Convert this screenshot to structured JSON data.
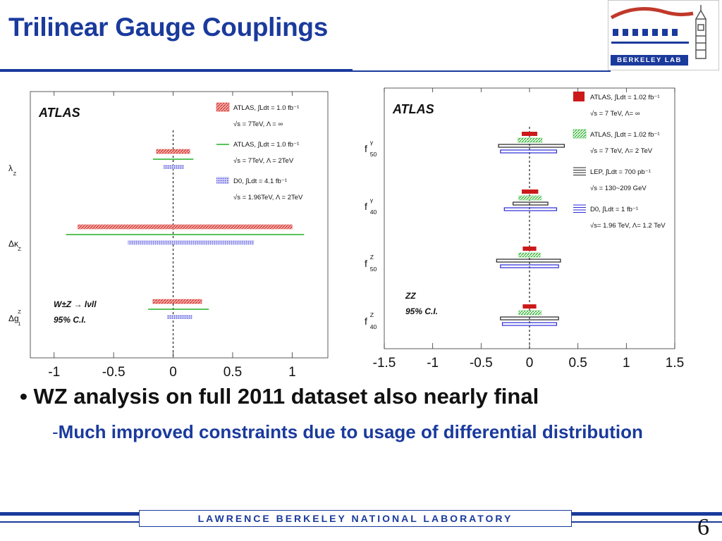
{
  "slide": {
    "title": "Trilinear Gauge Couplings",
    "logo_text": "BERKELEY LAB",
    "bullet1": "WZ analysis on full 2011 dataset also nearly final",
    "bullet2": "Much improved constraints due to usage of differential distribution",
    "footer": "LAWRENCE BERKELEY NATIONAL LABORATORY",
    "page_number": "6"
  },
  "chart_data": [
    {
      "type": "interval",
      "experiment": "ATLAS",
      "annotation": [
        "W±Z → lνll",
        "95% C.I."
      ],
      "xlim": [
        -1.2,
        1.3
      ],
      "xticks": [
        "-1",
        "-0.5",
        "0",
        "0.5",
        "1"
      ],
      "xtick_values": [
        -1,
        -0.5,
        0,
        0.5,
        1
      ],
      "parameters": [
        "λZ",
        "ΔκZ",
        "Δg1Z"
      ],
      "param_labels": [
        {
          "main": "λ",
          "sub": "Z",
          "sup": ""
        },
        {
          "main": "Δκ",
          "sub": "Z",
          "sup": ""
        },
        {
          "main": "Δg",
          "sub": "1",
          "sup": "Z"
        }
      ],
      "legend": [
        {
          "line1": "ATLAS, ∫Ldt = 1.0 fb⁻¹",
          "line2": "√s = 7TeV, Λ = ∞",
          "style": "hatch",
          "color": "#e0302b"
        },
        {
          "line1": "ATLAS, ∫Ldt = 1.0 fb⁻¹",
          "line2": "√s = 7TeV, Λ = 2TeV",
          "style": "line",
          "color": "#22b022"
        },
        {
          "line1": "D0, ∫Ldt = 4.1 fb⁻¹",
          "line2": "√s = 1.96TeV, Λ = 2TeV",
          "style": "dots",
          "color": "#3a3ae0"
        }
      ],
      "series": [
        {
          "name": "ATLAS, √s = 7TeV, Λ = ∞",
          "style": "hatch",
          "color": "#e0302b",
          "intervals": [
            [
              -0.14,
              0.14
            ],
            [
              -0.8,
              1.0
            ],
            [
              -0.17,
              0.24
            ]
          ]
        },
        {
          "name": "ATLAS, √s = 7TeV, Λ = 2TeV",
          "style": "line",
          "color": "#22b022",
          "intervals": [
            [
              -0.17,
              0.17
            ],
            [
              -0.9,
              1.1
            ],
            [
              -0.21,
              0.3
            ]
          ]
        },
        {
          "name": "D0, √s = 1.96TeV, Λ = 2TeV",
          "style": "dots",
          "color": "#3a3ae0",
          "intervals": [
            [
              -0.08,
              0.09
            ],
            [
              -0.38,
              0.68
            ],
            [
              -0.05,
              0.16
            ]
          ]
        }
      ]
    },
    {
      "type": "interval",
      "experiment": "ATLAS",
      "annotation": [
        "ZZ",
        "95% C.I."
      ],
      "xlim": [
        -1.5,
        1.5
      ],
      "xticks": [
        "-1.5",
        "-1",
        "-0.5",
        "0",
        "0.5",
        "1",
        "1.5"
      ],
      "xtick_values": [
        -1.5,
        -1,
        -0.5,
        0,
        0.5,
        1,
        1.5
      ],
      "parameters": [
        "f50γ",
        "f40γ",
        "f50Z",
        "f40Z"
      ],
      "param_labels": [
        {
          "main": "f",
          "sub": "50",
          "sup": "γ"
        },
        {
          "main": "f",
          "sub": "40",
          "sup": "γ"
        },
        {
          "main": "f",
          "sub": "50",
          "sup": "Z"
        },
        {
          "main": "f",
          "sub": "40",
          "sup": "Z"
        }
      ],
      "legend": [
        {
          "line1": "ATLAS, ∫Ldt = 1.02 fb⁻¹",
          "line2": "√s = 7 TeV, Λ= ∞",
          "style": "solid",
          "color": "#cc1a1a"
        },
        {
          "line1": "ATLAS, ∫Ldt = 1.02 fb⁻¹",
          "line2": "√s = 7 TeV, Λ= 2 TeV",
          "style": "hatch",
          "color": "#22b022"
        },
        {
          "line1": "LEP, ∫Ldt = 700 pb⁻¹",
          "line2": "√s = 130~209 GeV",
          "style": "lines",
          "color": "#222222"
        },
        {
          "line1": "D0, ∫Ldt = 1 fb⁻¹",
          "line2": "√s= 1.96 TeV, Λ= 1.2 TeV",
          "style": "lines",
          "color": "#2a2ad8"
        }
      ],
      "series": [
        {
          "name": "ATLAS, √s = 7 TeV, Λ= ∞",
          "style": "solid",
          "color": "#cc1a1a",
          "intervals": [
            [
              -0.08,
              0.08
            ],
            [
              -0.08,
              0.09
            ],
            [
              -0.07,
              0.07
            ],
            [
              -0.07,
              0.07
            ]
          ]
        },
        {
          "name": "ATLAS, √s = 7 TeV, Λ= 2 TeV",
          "style": "hatch",
          "color": "#22b022",
          "intervals": [
            [
              -0.12,
              0.13
            ],
            [
              -0.11,
              0.12
            ],
            [
              -0.11,
              0.11
            ],
            [
              -0.11,
              0.12
            ]
          ]
        },
        {
          "name": "LEP, √s = 130~209 GeV",
          "style": "lines",
          "color": "#222222",
          "intervals": [
            [
              -0.32,
              0.36
            ],
            [
              -0.17,
              0.19
            ],
            [
              -0.34,
              0.32
            ],
            [
              -0.3,
              0.3
            ]
          ]
        },
        {
          "name": "D0, √s= 1.96 TeV, Λ= 1.2 TeV",
          "style": "lines",
          "color": "#2a2ad8",
          "intervals": [
            [
              -0.3,
              0.28
            ],
            [
              -0.26,
              0.28
            ],
            [
              -0.3,
              0.3
            ],
            [
              -0.28,
              0.28
            ]
          ]
        }
      ]
    }
  ]
}
